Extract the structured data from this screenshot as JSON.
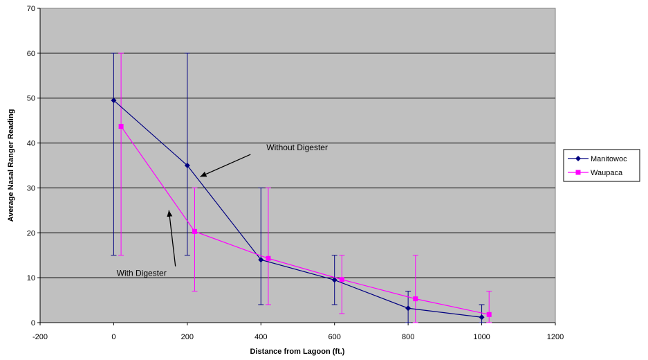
{
  "chart_data": {
    "type": "scatter",
    "title": "",
    "xlabel": "Distance from Lagoon (ft.)",
    "ylabel": "Average Nasal Ranger Reading",
    "xlim": [
      -200,
      1200
    ],
    "ylim": [
      0,
      70
    ],
    "x_ticks": [
      -200,
      0,
      200,
      400,
      600,
      800,
      1000,
      1200
    ],
    "y_ticks": [
      0,
      10,
      20,
      30,
      40,
      50,
      60,
      70
    ],
    "grid": "horizontal",
    "plot_background": "#c0c0c0",
    "legend_position": "right",
    "series": [
      {
        "name": "Manitowoc",
        "color": "#000080",
        "marker": "diamond",
        "points": [
          {
            "x": 0,
            "y": 49.5,
            "err_low": 15,
            "err_high": 60
          },
          {
            "x": 200,
            "y": 35,
            "err_low": 15,
            "err_high": 60
          },
          {
            "x": 400,
            "y": 14,
            "err_low": 4,
            "err_high": 30
          },
          {
            "x": 600,
            "y": 9.5,
            "err_low": 4,
            "err_high": 15
          },
          {
            "x": 800,
            "y": 3.2,
            "err_low": 0,
            "err_high": 7
          },
          {
            "x": 1000,
            "y": 1.2,
            "err_low": 0,
            "err_high": 4
          }
        ]
      },
      {
        "name": "Waupaca",
        "color": "#ff00ff",
        "marker": "square",
        "points": [
          {
            "x": 20,
            "y": 43.7,
            "err_low": 15,
            "err_high": 60
          },
          {
            "x": 220,
            "y": 20.3,
            "err_low": 7,
            "err_high": 30
          },
          {
            "x": 420,
            "y": 14.3,
            "err_low": 4,
            "err_high": 30
          },
          {
            "x": 620,
            "y": 9.6,
            "err_low": 2,
            "err_high": 15
          },
          {
            "x": 820,
            "y": 5.3,
            "err_low": 0,
            "err_high": 15
          },
          {
            "x": 1020,
            "y": 1.8,
            "err_low": 0,
            "err_high": 7
          }
        ]
      }
    ],
    "annotations": [
      {
        "text": "Without Digester",
        "text_x": 415,
        "text_y": 39,
        "arrow_to_x": 235,
        "arrow_to_y": 32.5
      },
      {
        "text": "With Digester",
        "text_x": 8,
        "text_y": 11,
        "arrow_to_x": 150,
        "arrow_to_y": 25
      }
    ]
  }
}
